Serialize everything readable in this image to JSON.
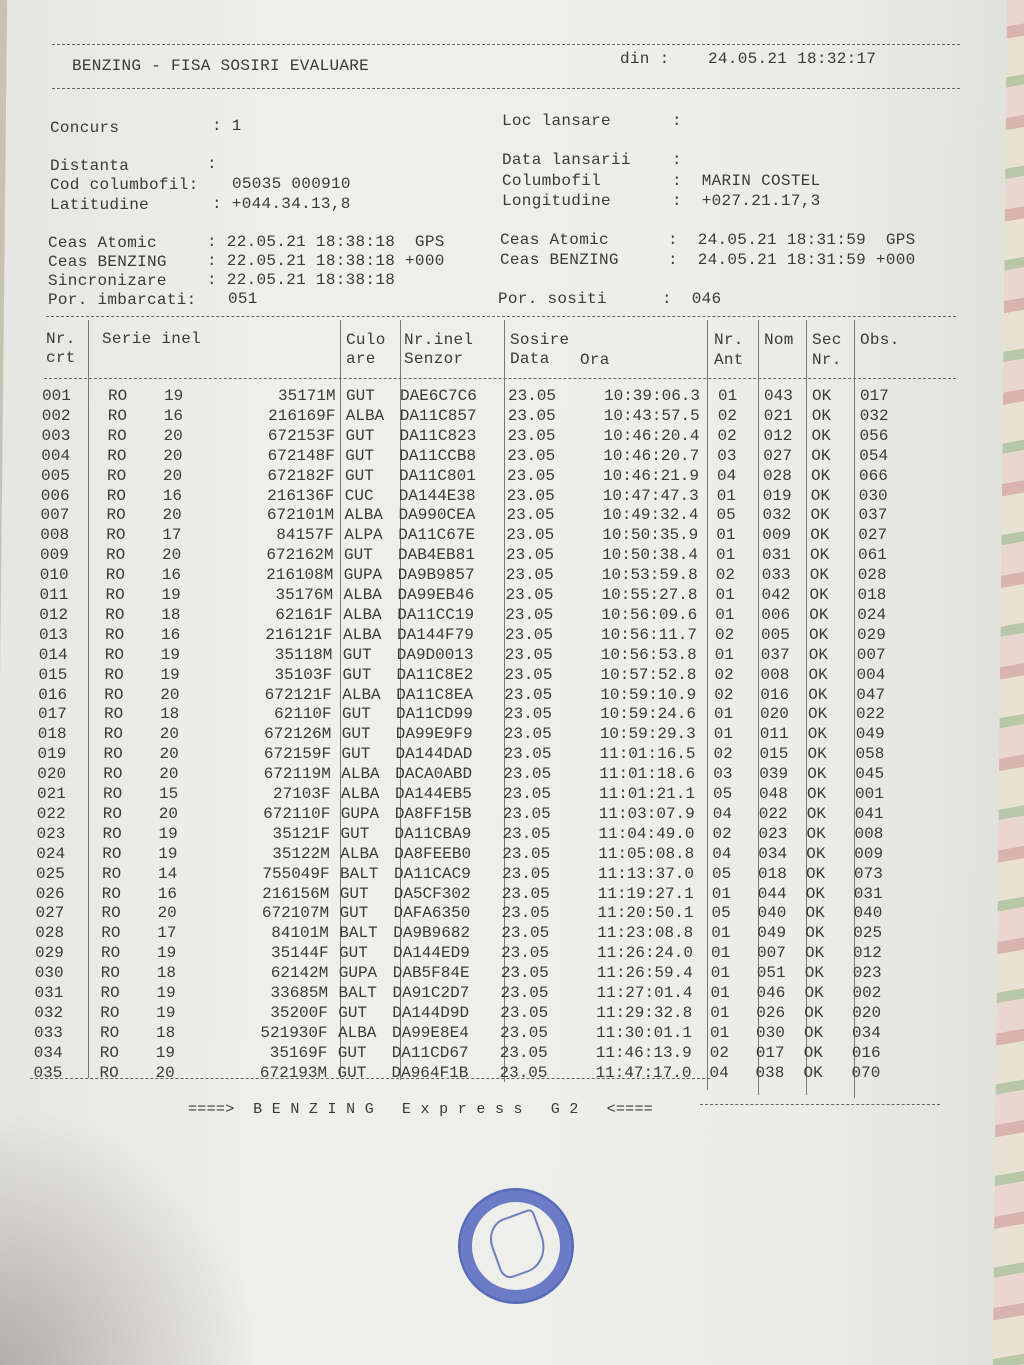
{
  "header": {
    "title": "BENZING - FISA SOSIRI EVALUARE",
    "din_label": "din :",
    "din_value": "24.05.21 18:32:17"
  },
  "info": {
    "concurs_label": "Concurs",
    "concurs_value": ": 1",
    "loc_label": "Loc lansare",
    "loc_value": ":",
    "distanta_label": "Distanta",
    "distanta_value": ":",
    "data_lansarii_label": "Data lansarii",
    "data_lansarii_value": ":",
    "cod_label": "Cod columbofil:",
    "cod_value": "05035 000910",
    "columbofil_label": "Columbofil",
    "columbofil_value": ":  MARIN COSTEL",
    "lat_label": "Latitudine",
    "lat_value": ": +044.34.13,8",
    "long_label": "Longitudine",
    "long_value": ":  +027.21.17,3",
    "ceas_atomic_l_label": "Ceas Atomic",
    "ceas_atomic_l_value": ": 22.05.21 18:38:18  GPS",
    "ceas_benzing_l_label": "Ceas BENZING",
    "ceas_benzing_l_value": ": 22.05.21 18:38:18 +000",
    "ceas_atomic_r_label": "Ceas Atomic",
    "ceas_atomic_r_value": ":  24.05.21 18:31:59  GPS",
    "ceas_benzing_r_label": "Ceas BENZING",
    "ceas_benzing_r_value": ":  24.05.21 18:31:59 +000",
    "sincronizare_label": "Sincronizare",
    "sincronizare_value": ": 22.05.21 18:38:18",
    "imbarcati_label": "Por. imbarcati:",
    "imbarcati_value": "051",
    "sositi_label": "Por. sositi",
    "sositi_value": ":  046"
  },
  "table": {
    "headers": {
      "nr1": "Nr.",
      "nr2": "crt",
      "serie": "Serie inel",
      "culo1": "Culo",
      "culo2": "are",
      "senzor1": "Nr.inel",
      "senzor2": "Senzor",
      "sosire": "Sosire",
      "data": "Data",
      "ora": "Ora",
      "ant1": "Nr.",
      "ant2": "Ant",
      "nom": "Nom",
      "sec1": "Sec",
      "sec2": "Nr.",
      "obs": "Obs."
    },
    "rows": [
      [
        "001",
        "RO",
        "19",
        "35171",
        "M",
        "GUT",
        "DAE6C7C6",
        "23.05",
        "10:39:06.3",
        "01",
        "043",
        "OK",
        "017"
      ],
      [
        "002",
        "RO",
        "16",
        "216169",
        "F",
        "ALBA",
        "DA11C857",
        "23.05",
        "10:43:57.5",
        "02",
        "021",
        "OK",
        "032"
      ],
      [
        "003",
        "RO",
        "20",
        "672153",
        "F",
        "GUT",
        "DA11C823",
        "23.05",
        "10:46:20.4",
        "02",
        "012",
        "OK",
        "056"
      ],
      [
        "004",
        "RO",
        "20",
        "672148",
        "F",
        "GUT",
        "DA11CCB8",
        "23.05",
        "10:46:20.7",
        "03",
        "027",
        "OK",
        "054"
      ],
      [
        "005",
        "RO",
        "20",
        "672182",
        "F",
        "GUT",
        "DA11C801",
        "23.05",
        "10:46:21.9",
        "04",
        "028",
        "OK",
        "066"
      ],
      [
        "006",
        "RO",
        "16",
        "216136",
        "F",
        "CUC",
        "DA144E38",
        "23.05",
        "10:47:47.3",
        "01",
        "019",
        "OK",
        "030"
      ],
      [
        "007",
        "RO",
        "20",
        "672101",
        "M",
        "ALBA",
        "DA990CEA",
        "23.05",
        "10:49:32.4",
        "05",
        "032",
        "OK",
        "037"
      ],
      [
        "008",
        "RO",
        "17",
        "84157",
        "F",
        "ALPA",
        "DA11C67E",
        "23.05",
        "10:50:35.9",
        "01",
        "009",
        "OK",
        "027"
      ],
      [
        "009",
        "RO",
        "20",
        "672162",
        "M",
        "GUT",
        "DAB4EB81",
        "23.05",
        "10:50:38.4",
        "01",
        "031",
        "OK",
        "061"
      ],
      [
        "010",
        "RO",
        "16",
        "216108",
        "M",
        "GUPA",
        "DA9B9857",
        "23.05",
        "10:53:59.8",
        "02",
        "033",
        "OK",
        "028"
      ],
      [
        "011",
        "RO",
        "19",
        "35176",
        "M",
        "ALBA",
        "DA99EB46",
        "23.05",
        "10:55:27.8",
        "01",
        "042",
        "OK",
        "018"
      ],
      [
        "012",
        "RO",
        "18",
        "62161",
        "F",
        "ALBA",
        "DA11CC19",
        "23.05",
        "10:56:09.6",
        "01",
        "006",
        "OK",
        "024"
      ],
      [
        "013",
        "RO",
        "16",
        "216121",
        "F",
        "ALBA",
        "DA144F79",
        "23.05",
        "10:56:11.7",
        "02",
        "005",
        "OK",
        "029"
      ],
      [
        "014",
        "RO",
        "19",
        "35118",
        "M",
        "GUT",
        "DA9D0013",
        "23.05",
        "10:56:53.8",
        "01",
        "037",
        "OK",
        "007"
      ],
      [
        "015",
        "RO",
        "19",
        "35103",
        "F",
        "GUT",
        "DA11C8E2",
        "23.05",
        "10:57:52.8",
        "02",
        "008",
        "OK",
        "004"
      ],
      [
        "016",
        "RO",
        "20",
        "672121",
        "F",
        "ALBA",
        "DA11C8EA",
        "23.05",
        "10:59:10.9",
        "02",
        "016",
        "OK",
        "047"
      ],
      [
        "017",
        "RO",
        "18",
        "62110",
        "F",
        "GUT",
        "DA11CD99",
        "23.05",
        "10:59:24.6",
        "01",
        "020",
        "OK",
        "022"
      ],
      [
        "018",
        "RO",
        "20",
        "672126",
        "M",
        "GUT",
        "DA99E9F9",
        "23.05",
        "10:59:29.3",
        "01",
        "011",
        "OK",
        "049"
      ],
      [
        "019",
        "RO",
        "20",
        "672159",
        "F",
        "GUT",
        "DA144DAD",
        "23.05",
        "11:01:16.5",
        "02",
        "015",
        "OK",
        "058"
      ],
      [
        "020",
        "RO",
        "20",
        "672119",
        "M",
        "ALBA",
        "DACA0ABD",
        "23.05",
        "11:01:18.6",
        "03",
        "039",
        "OK",
        "045"
      ],
      [
        "021",
        "RO",
        "15",
        "27103",
        "F",
        "ALBA",
        "DA144EB5",
        "23.05",
        "11:01:21.1",
        "05",
        "048",
        "OK",
        "001"
      ],
      [
        "022",
        "RO",
        "20",
        "672110",
        "F",
        "GUPA",
        "DA8FF15B",
        "23.05",
        "11:03:07.9",
        "04",
        "022",
        "OK",
        "041"
      ],
      [
        "023",
        "RO",
        "19",
        "35121",
        "F",
        "GUT",
        "DA11CBA9",
        "23.05",
        "11:04:49.0",
        "02",
        "023",
        "OK",
        "008"
      ],
      [
        "024",
        "RO",
        "19",
        "35122",
        "M",
        "ALBA",
        "DA8FEEB0",
        "23.05",
        "11:05:08.8",
        "04",
        "034",
        "OK",
        "009"
      ],
      [
        "025",
        "RO",
        "14",
        "755049",
        "F",
        "BALT",
        "DA11CAC9",
        "23.05",
        "11:13:37.0",
        "05",
        "018",
        "OK",
        "073"
      ],
      [
        "026",
        "RO",
        "16",
        "216156",
        "M",
        "GUT",
        "DA5CF302",
        "23.05",
        "11:19:27.1",
        "01",
        "044",
        "OK",
        "031"
      ],
      [
        "027",
        "RO",
        "20",
        "672107",
        "M",
        "GUT",
        "DAFA6350",
        "23.05",
        "11:20:50.1",
        "05",
        "040",
        "OK",
        "040"
      ],
      [
        "028",
        "RO",
        "17",
        "84101",
        "M",
        "BALT",
        "DA9B9682",
        "23.05",
        "11:23:08.8",
        "01",
        "049",
        "OK",
        "025"
      ],
      [
        "029",
        "RO",
        "19",
        "35144",
        "F",
        "GUT",
        "DA144ED9",
        "23.05",
        "11:26:24.0",
        "01",
        "007",
        "OK",
        "012"
      ],
      [
        "030",
        "RO",
        "18",
        "62142",
        "M",
        "GUPA",
        "DAB5F84E",
        "23.05",
        "11:26:59.4",
        "01",
        "051",
        "OK",
        "023"
      ],
      [
        "031",
        "RO",
        "19",
        "33685",
        "M",
        "BALT",
        "DA91C2D7",
        "23.05",
        "11:27:01.4",
        "01",
        "046",
        "OK",
        "002"
      ],
      [
        "032",
        "RO",
        "19",
        "35200",
        "F",
        "GUT",
        "DA144D9D",
        "23.05",
        "11:29:32.8",
        "01",
        "026",
        "OK",
        "020"
      ],
      [
        "033",
        "RO",
        "18",
        "521930",
        "F",
        "ALBA",
        "DA99E8E4",
        "23.05",
        "11:30:01.1",
        "01",
        "030",
        "OK",
        "034"
      ],
      [
        "034",
        "RO",
        "19",
        "35169",
        "F",
        "GUT",
        "DA11CD67",
        "23.05",
        "11:46:13.9",
        "02",
        "017",
        "OK",
        "016"
      ],
      [
        "035",
        "RO",
        "20",
        "672193",
        "M",
        "GUT",
        "DA964F1B",
        "23.05",
        "11:47:17.0",
        "04",
        "038",
        "OK",
        "070"
      ]
    ]
  },
  "footer": {
    "text": "====>  B E N Z I N G   E x p r e s s   G 2   <===="
  },
  "colors": {
    "ink": "#3a3a3a",
    "paper": "#ececE8",
    "stamp": "#3f56b5"
  }
}
